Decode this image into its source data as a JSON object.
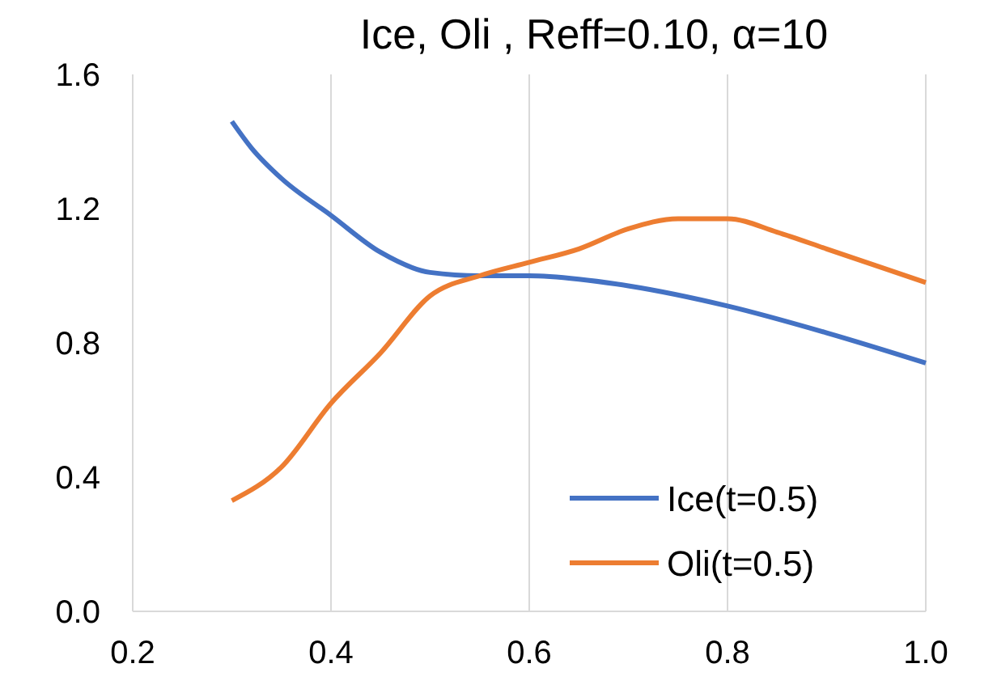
{
  "chart_data": {
    "type": "line",
    "title": "Ice, Oli , Reff=0.10, α=10",
    "xlim": [
      0.2,
      1.0
    ],
    "xticks": [
      {
        "value": 0.2,
        "label": "0.2"
      },
      {
        "value": 0.4,
        "label": "0.4"
      },
      {
        "value": 0.6,
        "label": "0.6"
      },
      {
        "value": 0.8,
        "label": "0.8"
      },
      {
        "value": 1.0,
        "label": "1.0"
      }
    ],
    "ylim": [
      0,
      1.6
    ],
    "yticks": [
      {
        "value": 0,
        "label": "0.0"
      },
      {
        "value": 0.4,
        "label": "0.4"
      },
      {
        "value": 0.8,
        "label": "0.8"
      },
      {
        "value": 1.2,
        "label": "1.2"
      },
      {
        "value": 1.6,
        "label": "1.6"
      }
    ],
    "grid": "x",
    "legend": "bottom right",
    "marker": "none",
    "line_style": "solid",
    "series": [
      {
        "name": "Ice(t=0.5)",
        "color": "#4472c4",
        "x": [
          0.3,
          0.32,
          0.35,
          0.4,
          0.45,
          0.5,
          0.55,
          0.6,
          0.65,
          0.7,
          0.8,
          0.9,
          1.0
        ],
        "values": [
          1.46,
          1.38,
          1.29,
          1.18,
          1.07,
          1.01,
          1.0,
          1.0,
          0.99,
          0.97,
          0.91,
          0.83,
          0.74
        ]
      },
      {
        "name": "Oli(t=0.5)",
        "color": "#ed7d31",
        "x": [
          0.3,
          0.35,
          0.4,
          0.45,
          0.5,
          0.55,
          0.6,
          0.65,
          0.7,
          0.75,
          0.8,
          0.85,
          0.9,
          1.0
        ],
        "values": [
          0.33,
          0.43,
          0.62,
          0.77,
          0.94,
          1.0,
          1.04,
          1.08,
          1.14,
          1.17,
          1.17,
          1.13,
          1.08,
          0.98
        ]
      }
    ]
  }
}
